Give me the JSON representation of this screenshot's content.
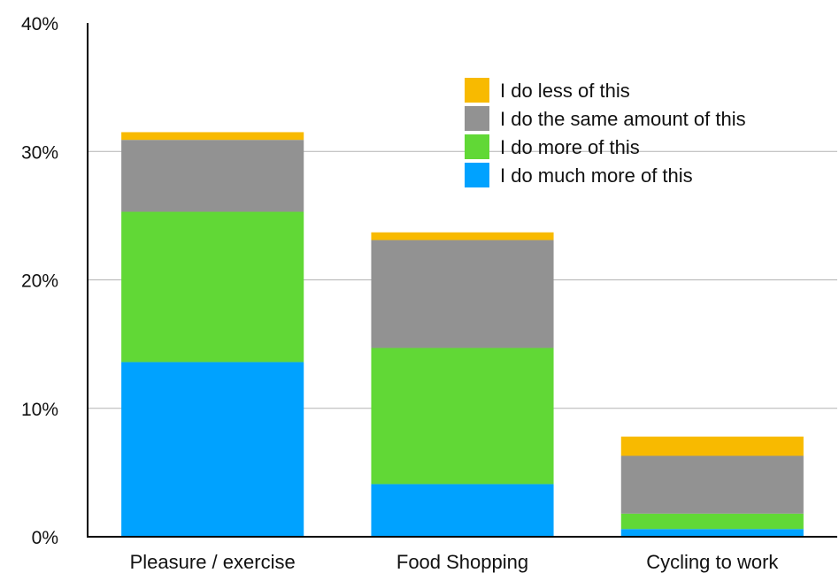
{
  "chart_data": {
    "type": "bar",
    "stacked": true,
    "categories": [
      "Pleasure / exercise",
      "Food Shopping",
      "Cycling to work"
    ],
    "series": [
      {
        "name": "I do much more of this",
        "color": "#00A2FF",
        "values": [
          13.6,
          4.1,
          0.6
        ]
      },
      {
        "name": "I do more of this",
        "color": "#61D836",
        "values": [
          11.7,
          10.6,
          1.2
        ]
      },
      {
        "name": "I do the same amount of this",
        "color": "#929292",
        "values": [
          5.6,
          8.4,
          4.5
        ]
      },
      {
        "name": "I do less of this",
        "color": "#F8BA00",
        "values": [
          0.6,
          0.6,
          1.5
        ]
      }
    ],
    "legend_order": [
      3,
      2,
      1,
      0
    ],
    "ylim": [
      0,
      40
    ],
    "yticks": [
      0,
      10,
      20,
      30,
      40
    ],
    "ytick_labels": [
      "0%",
      "10%",
      "20%",
      "30%",
      "40%"
    ],
    "grid": true,
    "legend_position": "top-right",
    "title": "",
    "xlabel": "",
    "ylabel": ""
  }
}
